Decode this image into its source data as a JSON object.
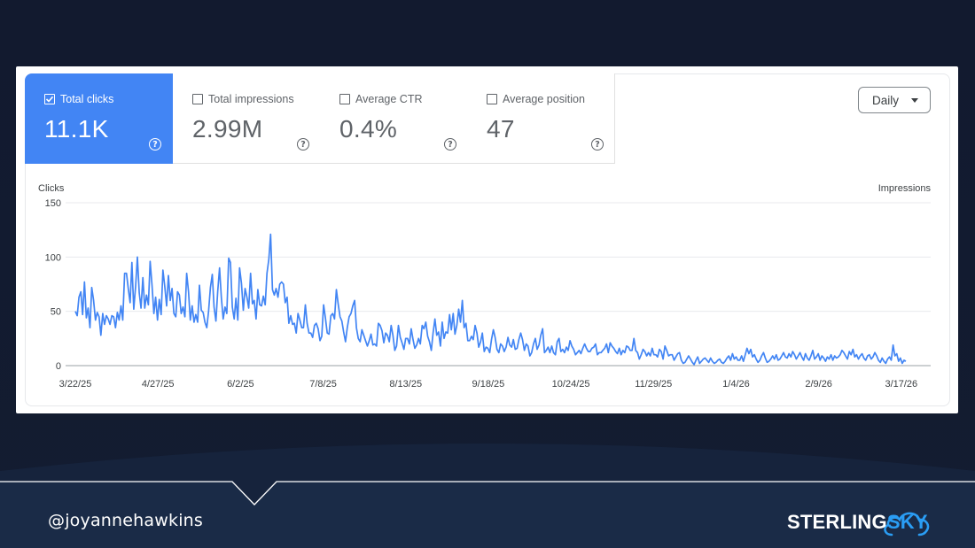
{
  "metrics": [
    {
      "label": "Total clicks",
      "value": "11.1K",
      "checked": true
    },
    {
      "label": "Total impressions",
      "value": "2.99M",
      "checked": false
    },
    {
      "label": "Average CTR",
      "value": "0.4%",
      "checked": false
    },
    {
      "label": "Average position",
      "value": "47",
      "checked": false
    }
  ],
  "help_glyph": "?",
  "period_select": {
    "value": "Daily"
  },
  "footer": {
    "handle": "@joyannehawkins",
    "logo_part1": "STERLING",
    "logo_part2": "SKY"
  },
  "colors": {
    "accent": "#4285f4",
    "slide_bg": "#121a2f",
    "logo_blue": "#2a9df4"
  },
  "chart_data": {
    "type": "line",
    "ylabel": "Clicks",
    "y2label": "Impressions",
    "ylim": [
      0,
      150
    ],
    "yticks": [
      0,
      50,
      100,
      150
    ],
    "xtick_labels": [
      "3/22/25",
      "4/27/25",
      "6/2/25",
      "7/8/25",
      "8/13/25",
      "9/18/25",
      "10/24/25",
      "11/29/25",
      "1/4/26",
      "2/9/26",
      "3/17/26"
    ],
    "x_start": "2025-03-22",
    "x_end": "2026-03-19",
    "series": [
      {
        "color": "#4285f4",
        "values": [
          50,
          46,
          63,
          68,
          47,
          77,
          44,
          53,
          35,
          72,
          60,
          42,
          49,
          45,
          28,
          48,
          38,
          46,
          43,
          38,
          46,
          45,
          35,
          49,
          42,
          55,
          42,
          85,
          85,
          71,
          58,
          95,
          52,
          73,
          100,
          67,
          53,
          81,
          53,
          65,
          56,
          96,
          74,
          48,
          63,
          42,
          61,
          47,
          88,
          73,
          55,
          83,
          60,
          71,
          48,
          45,
          68,
          65,
          48,
          54,
          45,
          85,
          68,
          42,
          55,
          40,
          47,
          40,
          74,
          51,
          49,
          40,
          35,
          50,
          72,
          84,
          54,
          41,
          68,
          90,
          63,
          43,
          54,
          48,
          99,
          95,
          54,
          43,
          62,
          42,
          90,
          76,
          51,
          71,
          63,
          53,
          85,
          57,
          60,
          43,
          70,
          56,
          55,
          64,
          56,
          85,
          98,
          121,
          70,
          65,
          71,
          63,
          75,
          77,
          75,
          58,
          63,
          39,
          46,
          38,
          39,
          30,
          48,
          42,
          35,
          35,
          56,
          39,
          30,
          30,
          26,
          37,
          39,
          34,
          23,
          27,
          56,
          44,
          30,
          29,
          46,
          48,
          43,
          70,
          57,
          45,
          41,
          31,
          22,
          35,
          45,
          48,
          55,
          60,
          35,
          25,
          22,
          33,
          28,
          23,
          18,
          23,
          29,
          19,
          20,
          18,
          39,
          37,
          32,
          21,
          30,
          28,
          22,
          37,
          28,
          14,
          18,
          37,
          26,
          21,
          15,
          25,
          25,
          20,
          34,
          24,
          16,
          19,
          25,
          20,
          37,
          34,
          40,
          27,
          22,
          14,
          30,
          43,
          28,
          31,
          18,
          40,
          25,
          31,
          30,
          47,
          33,
          48,
          29,
          37,
          52,
          40,
          60,
          35,
          39,
          23,
          23,
          27,
          24,
          37,
          30,
          17,
          22,
          30,
          13,
          17,
          16,
          12,
          24,
          33,
          26,
          15,
          12,
          20,
          18,
          13,
          17,
          26,
          19,
          17,
          24,
          15,
          16,
          24,
          30,
          24,
          14,
          20,
          18,
          9,
          12,
          20,
          25,
          15,
          19,
          28,
          34,
          12,
          14,
          17,
          12,
          18,
          12,
          10,
          22,
          25,
          13,
          15,
          12,
          17,
          14,
          23,
          18,
          15,
          10,
          12,
          14,
          11,
          16,
          20,
          16,
          13,
          13,
          16,
          17,
          20,
          10,
          12,
          12,
          14,
          16,
          20,
          12,
          21,
          18,
          16,
          13,
          11,
          16,
          10,
          14,
          12,
          18,
          17,
          14,
          14,
          25,
          14,
          12,
          6,
          10,
          15,
          13,
          9,
          12,
          9,
          16,
          10,
          10,
          8,
          15,
          13,
          6,
          18,
          14,
          9,
          10,
          10,
          5,
          8,
          11,
          12,
          5,
          2,
          3,
          6,
          9,
          6,
          3,
          1,
          5,
          8,
          2,
          4,
          6,
          7,
          5,
          3,
          7,
          4,
          2,
          3,
          5,
          6,
          3,
          2,
          4,
          7,
          9,
          5,
          11,
          6,
          8,
          5,
          5,
          9,
          4,
          10,
          16,
          11,
          15,
          8,
          10,
          6,
          3,
          5,
          9,
          12,
          7,
          3,
          4,
          6,
          9,
          6,
          10,
          5,
          6,
          9,
          12,
          8,
          7,
          11,
          8,
          13,
          10,
          6,
          9,
          12,
          8,
          5,
          11,
          7,
          5,
          9,
          14,
          6,
          8,
          11,
          5,
          9,
          7,
          4,
          8,
          6,
          10,
          5,
          9,
          7,
          8,
          10,
          14,
          12,
          9,
          6,
          13,
          10,
          15,
          8,
          10,
          6,
          9,
          11,
          7,
          5,
          9,
          10,
          6,
          8,
          12,
          9,
          5,
          3,
          7,
          4,
          2,
          6,
          8,
          5,
          19,
          9,
          11,
          4,
          7,
          2,
          5,
          4
        ]
      }
    ]
  }
}
